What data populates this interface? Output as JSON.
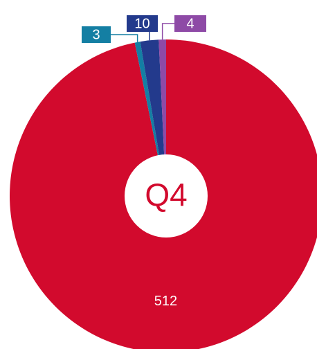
{
  "chart_data": {
    "type": "pie",
    "values": [
      512,
      3,
      10,
      4
    ],
    "colors": [
      "#d20a2d",
      "#147fa3",
      "#233a8c",
      "#8e4aa6"
    ],
    "center_label": "Q4"
  }
}
